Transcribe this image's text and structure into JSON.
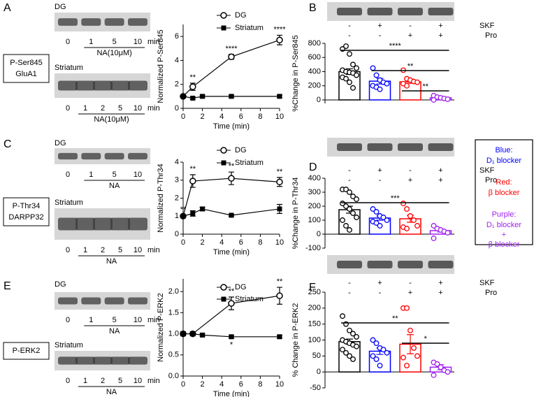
{
  "chart_data": [
    {
      "type": "line",
      "panel": "A",
      "protein": [
        "P-Ser845",
        "GluA1"
      ],
      "blots": [
        {
          "title": "DG",
          "lanes": [
            "0",
            "1",
            "5",
            "10"
          ],
          "unit": "min",
          "treatment": "NA(10μM)"
        },
        {
          "title": "Striatum",
          "lanes": [
            "0",
            "1",
            "2",
            "5",
            "10"
          ],
          "unit": "min",
          "treatment": "NA(10μM)"
        }
      ],
      "x_label": "Time (min)",
      "y_label": "Normalized P-Ser845",
      "xlim": [
        0,
        10
      ],
      "xticks": [
        0,
        2,
        4,
        6,
        8,
        10
      ],
      "ylim": [
        0,
        7
      ],
      "yticks": [
        0,
        2,
        4,
        6
      ],
      "series": [
        {
          "name": "DG",
          "color": "#000000",
          "marker": "open-circle",
          "x": [
            0,
            1,
            5,
            10
          ],
          "values": [
            1,
            1.8,
            4.3,
            5.7
          ],
          "errors": [
            0.1,
            0.3,
            0.2,
            0.4
          ],
          "significance": [
            null,
            "**",
            "****",
            "****"
          ]
        },
        {
          "name": "Striatum",
          "color": "#000000",
          "marker": "square",
          "x": [
            0,
            1,
            2,
            5,
            10
          ],
          "values": [
            1,
            0.85,
            1.0,
            1.0,
            1.0
          ],
          "errors": [
            0.05,
            0.1,
            0.1,
            0.1,
            0.1
          ]
        }
      ]
    },
    {
      "type": "bar",
      "panel": "B",
      "y_label": "%Change in P-Ser845",
      "ylim": [
        -50,
        800
      ],
      "yticks": [
        0,
        200,
        400,
        600,
        800
      ],
      "conditions": [
        {
          "name": "SKF",
          "signs": [
            "-",
            "+",
            "-",
            "+"
          ]
        },
        {
          "name": "Pro",
          "signs": [
            "-",
            "-",
            "+",
            "+"
          ]
        }
      ],
      "colors": [
        "#000000",
        "#0000ff",
        "#ff0000",
        "#a020f0"
      ],
      "values": [
        400,
        265,
        255,
        30
      ],
      "errors": [
        40,
        40,
        20,
        10
      ],
      "points": [
        [
          720,
          760,
          650,
          500,
          450,
          420,
          400,
          390,
          380,
          350,
          320,
          300,
          250,
          170
        ],
        [
          450,
          350,
          280,
          250,
          230,
          200,
          180,
          150
        ],
        [
          420,
          300,
          280,
          260,
          250,
          230,
          200
        ],
        [
          60,
          40,
          30,
          20,
          10,
          0
        ]
      ],
      "comparisons": [
        {
          "from": 0,
          "to": 3,
          "label": "****"
        },
        {
          "from": 1,
          "to": 3,
          "label": "**"
        },
        {
          "from": 2,
          "to": 3,
          "label": "**"
        }
      ]
    },
    {
      "type": "line",
      "panel": "C",
      "protein": [
        "P-Thr34",
        "DARPP32"
      ],
      "blots": [
        {
          "title": "DG",
          "lanes": [
            "0",
            "1",
            "5",
            "10"
          ],
          "treatment": "NA"
        },
        {
          "title": "Striatum",
          "lanes": [
            "0",
            "1",
            "2",
            "5",
            "10"
          ],
          "unit": "min",
          "treatment": "NA"
        }
      ],
      "x_label": "Time (min)",
      "y_label": "Normalized P-Thr34",
      "xlim": [
        0,
        10
      ],
      "xticks": [
        0,
        2,
        4,
        6,
        8,
        10
      ],
      "ylim": [
        0,
        4
      ],
      "yticks": [
        0,
        1,
        2,
        3,
        4
      ],
      "series": [
        {
          "name": "DG",
          "color": "#000000",
          "marker": "open-circle",
          "x": [
            0,
            1,
            5,
            10
          ],
          "values": [
            1,
            2.95,
            3.1,
            2.9
          ],
          "errors": [
            0.05,
            0.35,
            0.35,
            0.25
          ],
          "significance": [
            "**",
            "**",
            "**",
            "**"
          ]
        },
        {
          "name": "Striatum",
          "color": "#000000",
          "marker": "square",
          "x": [
            0,
            1,
            2,
            5,
            10
          ],
          "values": [
            1,
            1.15,
            1.4,
            1.05,
            1.4
          ],
          "errors": [
            0.05,
            0.15,
            0.1,
            0.05,
            0.25
          ]
        }
      ]
    },
    {
      "type": "bar",
      "panel": "D",
      "y_label": "%Change in P-Thr34",
      "ylim": [
        -100,
        400
      ],
      "yticks": [
        -100,
        0,
        100,
        200,
        300,
        400
      ],
      "conditions": [
        {
          "name": "SKF",
          "signs": [
            "-",
            "+",
            "-",
            "+"
          ]
        },
        {
          "name": "Pro",
          "signs": [
            "-",
            "-",
            "+",
            "+"
          ]
        }
      ],
      "colors": [
        "#000000",
        "#0000ff",
        "#ff0000",
        "#a020f0"
      ],
      "values": [
        175,
        115,
        110,
        25
      ],
      "errors": [
        25,
        15,
        25,
        10
      ],
      "points": [
        [
          320,
          320,
          300,
          270,
          250,
          220,
          200,
          180,
          150,
          120,
          100,
          60,
          30
        ],
        [
          180,
          160,
          130,
          120,
          100,
          90,
          80,
          60
        ],
        [
          220,
          180,
          130,
          100,
          60,
          50,
          40
        ],
        [
          60,
          40,
          30,
          20,
          10,
          -30
        ]
      ],
      "comparisons": [
        {
          "from": 0,
          "to": 3,
          "label": "***"
        }
      ]
    },
    {
      "type": "line",
      "panel": "E",
      "protein": [
        "P-ERK2"
      ],
      "blots": [
        {
          "title": "DG",
          "lanes": [
            "0",
            "1",
            "5",
            "10"
          ],
          "unit": "min",
          "treatment": "NA"
        },
        {
          "title": "Striatum",
          "lanes": [
            "0",
            "1",
            "2",
            "5",
            "10"
          ],
          "unit": "min",
          "treatment": "NA"
        }
      ],
      "x_label": "Time (min)",
      "y_label": "Normalized P-ERK2",
      "xlim": [
        0,
        10
      ],
      "xticks": [
        0,
        2,
        4,
        6,
        8,
        10
      ],
      "ylim": [
        0,
        2.3
      ],
      "yticks": [
        {
          "value": 0,
          "label": "0.0"
        },
        0.5,
        {
          "value": 1,
          "label": "1.0"
        },
        1.5,
        {
          "value": 2,
          "label": "2.0"
        }
      ],
      "series": [
        {
          "name": "DG",
          "color": "#000000",
          "marker": "open-circle",
          "x": [
            0,
            1,
            5,
            10
          ],
          "values": [
            1,
            1.0,
            1.72,
            1.9
          ],
          "errors": [
            0.05,
            0.05,
            0.15,
            0.2
          ],
          "significance": [
            null,
            null,
            "**",
            "**"
          ]
        },
        {
          "name": "Striatum",
          "color": "#000000",
          "marker": "square",
          "x": [
            0,
            1,
            2,
            5,
            10
          ],
          "values": [
            1,
            1.0,
            0.97,
            0.93,
            0.93
          ],
          "errors": [
            0.03,
            0.03,
            0.03,
            0.03,
            0.03
          ],
          "significance": [
            null,
            null,
            null,
            "*",
            null
          ]
        }
      ]
    },
    {
      "type": "bar",
      "panel": "F",
      "y_label": "% Change in P-ERK2",
      "ylim": [
        -50,
        250
      ],
      "yticks": [
        -50,
        0,
        50,
        100,
        150,
        200,
        250
      ],
      "conditions": [
        {
          "name": "SKF",
          "signs": [
            "-",
            "+",
            "-",
            "+"
          ]
        },
        {
          "name": "Pro",
          "signs": [
            "-",
            "-",
            "+",
            "+"
          ]
        }
      ],
      "colors": [
        "#000000",
        "#0000ff",
        "#ff0000",
        "#a020f0"
      ],
      "values": [
        95,
        65,
        87,
        15
      ],
      "errors": [
        8,
        10,
        30,
        8
      ],
      "points": [
        [
          175,
          150,
          130,
          120,
          110,
          100,
          95,
          90,
          85,
          80,
          70,
          60,
          50,
          40
        ],
        [
          100,
          90,
          75,
          70,
          60,
          50,
          40,
          20
        ],
        [
          200,
          200,
          130,
          75,
          50,
          45,
          20
        ],
        [
          30,
          25,
          15,
          5,
          0,
          -10
        ]
      ],
      "comparisons": [
        {
          "from": 0,
          "to": 3,
          "label": "**"
        },
        {
          "from": 2,
          "to": 3,
          "label": "*"
        }
      ]
    }
  ],
  "legend_box": {
    "items": [
      {
        "label": "Blue:",
        "lines": [
          "D₁ blocker"
        ],
        "color": "#0000ff"
      },
      {
        "label": "Red:",
        "lines": [
          "β blocker"
        ],
        "color": "#ff0000"
      },
      {
        "label": "Purple:",
        "lines": [
          "D₁ blocker",
          "+",
          "β blocker"
        ],
        "color": "#a020f0"
      }
    ]
  }
}
